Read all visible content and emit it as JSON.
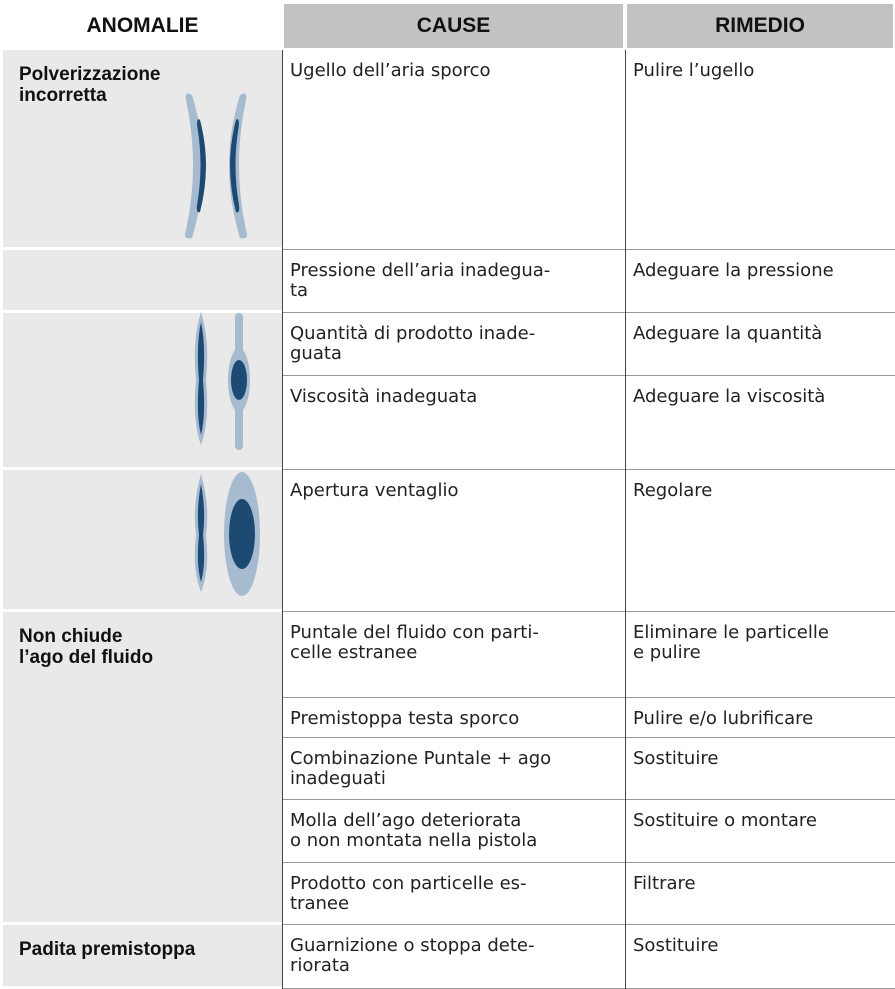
{
  "table": {
    "headers": [
      "ANOMALIE",
      "CAUSE",
      "RIMEDIO"
    ],
    "rows": [
      {
        "anomaly": "Polverizzazione\nincorretta",
        "cause": "Ugello dell’aria sporco",
        "remedy": "Pulire l’ugello"
      },
      {
        "cause": "Pressione dell’aria inadegua-\nta",
        "remedy": "Adeguare la pressione"
      },
      {
        "cause": "Quantità di prodotto inade-\nguata",
        "remedy": "Adeguare la quantità"
      },
      {
        "cause": "Viscosità inadeguata",
        "remedy": "Adeguare la viscosità"
      },
      {
        "cause": "Apertura ventaglio",
        "remedy": "Regolare"
      },
      {
        "anomaly": "Non chiude\nl’ago del fluido",
        "cause": "Puntale del fluido con parti-\ncelle estranee",
        "remedy": "Eliminare le particelle\ne pulire"
      },
      {
        "cause": "Premistoppa testa sporco",
        "remedy": "Pulire e/o lubrificare"
      },
      {
        "cause": "Combinazione Puntale + ago\ninadeguati",
        "remedy": "Sostituire"
      },
      {
        "cause": "Molla dell’ago deteriorata\no non montata nella pistola",
        "remedy": "Sostituire o montare"
      },
      {
        "cause": "Prodotto con particelle es-\ntranee",
        "remedy": "Filtrare"
      },
      {
        "anomaly": "Padita premistoppa",
        "cause": "Guarnizione o stoppa dete-\nriorata",
        "remedy": "Sostituire"
      }
    ]
  }
}
